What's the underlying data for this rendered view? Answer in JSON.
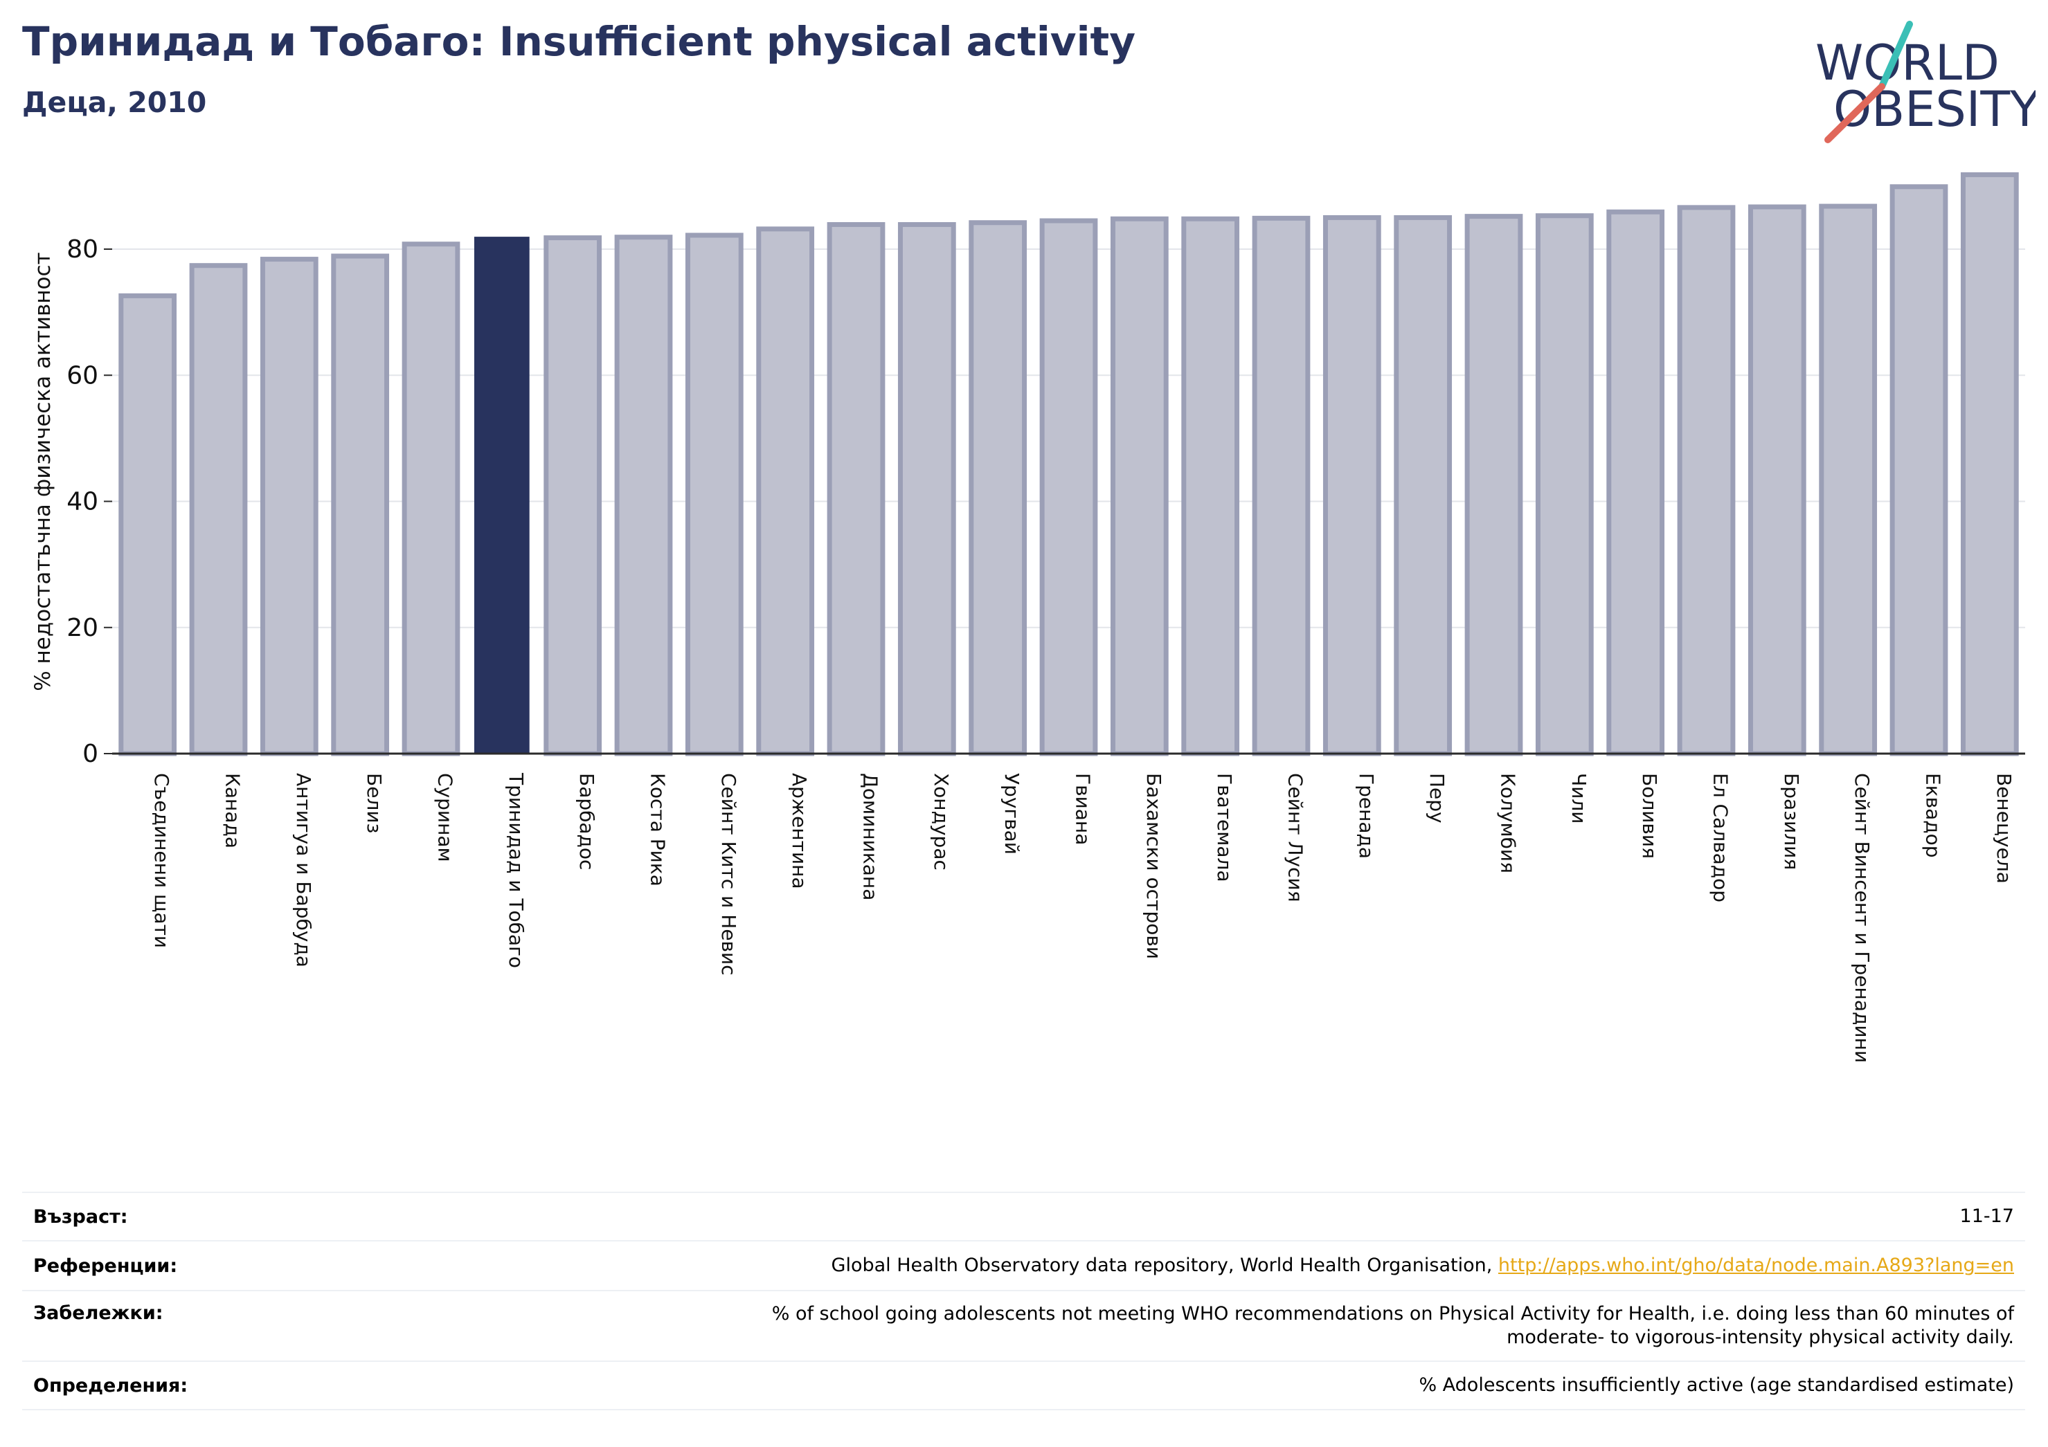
{
  "header": {
    "title": "Тринидад и Тобаго: Insufficient physical activity",
    "subtitle": "Деца, 2010"
  },
  "logo": {
    "line1": "WORLD",
    "line2": "OBESITY",
    "text_color": "#28335e",
    "slash_color_top": "#3bbfb6",
    "slash_color_bottom": "#e0675a"
  },
  "chart_data": {
    "type": "bar",
    "ylabel": "% недостатъчна физическа активност",
    "xlabel": "",
    "ylim": [
      0,
      96
    ],
    "yticks": [
      0,
      20,
      40,
      60,
      80
    ],
    "grid": true,
    "highlight_index": 5,
    "colors": {
      "bar_fill": "#bfc1cf",
      "bar_border": "#9b9fb6",
      "highlight": "#28335e",
      "axis": "#2b2b2b",
      "grid": "#e3e5ea"
    },
    "categories": [
      "Съединени щати",
      "Канада",
      "Антигуа и Барбуда",
      "Белиз",
      "Суринам",
      "Тринидад и Тобаго",
      "Барбадос",
      "Коста Рика",
      "Сейнт Китс и Невис",
      "Аржентина",
      "Доминикана",
      "Хондурас",
      "Уругвай",
      "Гвиана",
      "Бахамски острови",
      "Гватемала",
      "Сейнт Лусия",
      "Гренада",
      "Перу",
      "Колумбия",
      "Чили",
      "Боливия",
      "Ел Салвадор",
      "Бразилия",
      "Сейнт Винсент и Гренадини",
      "Еквадор",
      "Венецуела"
    ],
    "values": [
      72.6,
      77.4,
      78.4,
      78.9,
      80.8,
      81.8,
      81.8,
      81.9,
      82.2,
      83.2,
      83.9,
      83.9,
      84.2,
      84.5,
      84.8,
      84.8,
      84.9,
      85.0,
      85.0,
      85.2,
      85.3,
      85.9,
      86.6,
      86.7,
      86.8,
      89.9,
      91.8
    ]
  },
  "info": {
    "rows": [
      {
        "label": "Възраст:",
        "value": "11-17"
      },
      {
        "label": "Референции:",
        "value": "Global Health Observatory data repository, World Health Organisation, ",
        "link": "http://apps.who.int/gho/data/node.main.A893?lang=en"
      },
      {
        "label": "Забележки:",
        "value": "% of school going adolescents not meeting WHO recommendations on Physical Activity for Health, i.e. doing less than 60 minutes of",
        "value2": "moderate- to vigorous-intensity physical activity daily."
      },
      {
        "label": "Определения:",
        "value": "% Adolescents insufficiently active (age standardised estimate)"
      }
    ]
  }
}
